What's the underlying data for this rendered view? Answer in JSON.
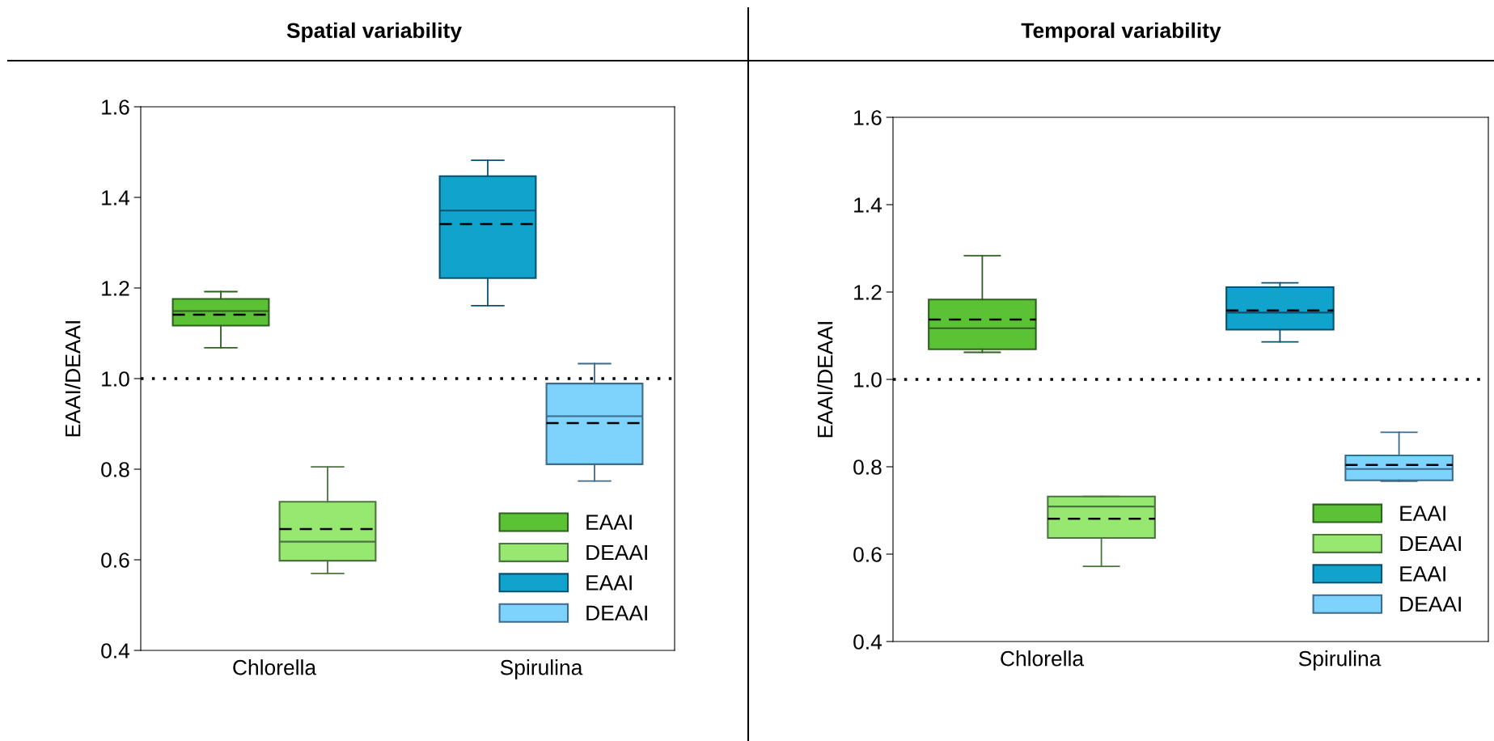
{
  "chart_data": [
    {
      "type": "box",
      "title": "Spatial variability",
      "ylabel": "EAAI/DEAAI",
      "categories": [
        "Chlorella",
        "Spirulina"
      ],
      "series": [
        {
          "name": "EAAI",
          "color": "#5bc236",
          "boxes": [
            {
              "low": 1.068,
              "q1": 1.117,
              "median": 1.149,
              "q3": 1.176,
              "high": 1.192,
              "mean": 1.141
            },
            null
          ]
        },
        {
          "name": "DEAAI",
          "color": "#96e870",
          "boxes": [
            {
              "low": 0.57,
              "q1": 0.598,
              "median": 0.64,
              "q3": 0.728,
              "high": 0.805,
              "mean": 0.668
            },
            null
          ]
        },
        {
          "name": "EAAI",
          "color": "#10a3cc",
          "boxes": [
            null,
            {
              "low": 1.161,
              "q1": 1.222,
              "median": 1.371,
              "q3": 1.447,
              "high": 1.482,
              "mean": 1.341
            }
          ]
        },
        {
          "name": "DEAAI",
          "color": "#7dd3fc",
          "boxes": [
            null,
            {
              "low": 0.774,
              "q1": 0.811,
              "median": 0.917,
              "q3": 0.989,
              "high": 1.033,
              "mean": 0.902
            }
          ]
        }
      ],
      "ylim": [
        0.4,
        1.6
      ],
      "yticks": [
        {
          "value": 0.4,
          "label": "0.4"
        },
        {
          "value": 0.6,
          "label": "0.6"
        },
        {
          "value": 0.8,
          "label": "0.8"
        },
        {
          "value": 1.0,
          "label": "1.0"
        },
        {
          "value": 1.2,
          "label": "1.2"
        },
        {
          "value": 1.4,
          "label": "1.4"
        },
        {
          "value": 1.6,
          "label": "1.6"
        }
      ],
      "ref_lines": [
        {
          "axis": "y",
          "value": 1.0,
          "line_style": "dotted"
        }
      ],
      "legend": "bottom right",
      "grid": false
    },
    {
      "type": "box",
      "title": "Temporal variability",
      "ylabel": "EAAI/DEAAI",
      "categories": [
        "Chlorella",
        "Spirulina"
      ],
      "series": [
        {
          "name": "EAAI",
          "color": "#5bc236",
          "boxes": [
            {
              "low": 1.062,
              "q1": 1.069,
              "median": 1.117,
              "q3": 1.183,
              "high": 1.283,
              "mean": 1.137
            },
            null
          ]
        },
        {
          "name": "DEAAI",
          "color": "#96e870",
          "boxes": [
            {
              "low": 0.572,
              "q1": 0.637,
              "median": 0.709,
              "q3": 0.732,
              "high": 0.732,
              "mean": 0.681
            },
            null
          ]
        },
        {
          "name": "EAAI",
          "color": "#10a3cc",
          "boxes": [
            null,
            {
              "low": 1.086,
              "q1": 1.114,
              "median": 1.153,
              "q3": 1.211,
              "high": 1.221,
              "mean": 1.158
            }
          ]
        },
        {
          "name": "DEAAI",
          "color": "#7dd3fc",
          "boxes": [
            null,
            {
              "low": 0.767,
              "q1": 0.769,
              "median": 0.795,
              "q3": 0.826,
              "high": 0.879,
              "mean": 0.804
            }
          ]
        }
      ],
      "ylim": [
        0.4,
        1.6
      ],
      "yticks": [
        {
          "value": 0.4,
          "label": "0.4"
        },
        {
          "value": 0.6,
          "label": "0.6"
        },
        {
          "value": 0.8,
          "label": "0.8"
        },
        {
          "value": 1.0,
          "label": "1.0"
        },
        {
          "value": 1.2,
          "label": "1.2"
        },
        {
          "value": 1.4,
          "label": "1.4"
        },
        {
          "value": 1.6,
          "label": "1.6"
        }
      ],
      "ref_lines": [
        {
          "axis": "y",
          "value": 1.0,
          "line_style": "dotted"
        }
      ],
      "legend": "bottom right",
      "grid": false
    }
  ]
}
